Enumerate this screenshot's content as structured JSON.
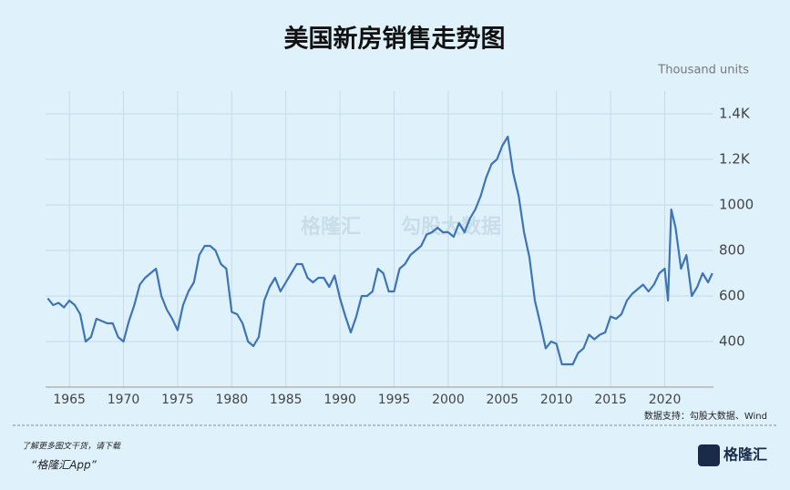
{
  "chart_data": {
    "type": "line",
    "title": "美国新房销售走势图",
    "y_axis_label": "Thousand units",
    "source": "数据支持：勾股大数据、Wind",
    "watermark": [
      "格隆汇",
      "勾股大数据"
    ],
    "footer": {
      "note": "了解更多图文干货，请下载",
      "app": "“格隆汇App”",
      "logo": "格隆汇"
    },
    "x": [
      1963,
      1963.5,
      1964,
      1964.5,
      1965,
      1965.5,
      1966,
      1966.5,
      1967,
      1967.5,
      1968,
      1968.5,
      1969,
      1969.5,
      1970,
      1970.5,
      1971,
      1971.5,
      1972,
      1972.5,
      1973,
      1973.5,
      1974,
      1974.5,
      1975,
      1975.5,
      1976,
      1976.5,
      1977,
      1977.5,
      1978,
      1978.5,
      1979,
      1979.5,
      1980,
      1980.5,
      1981,
      1981.5,
      1982,
      1982.5,
      1983,
      1983.5,
      1984,
      1984.5,
      1985,
      1985.5,
      1986,
      1986.5,
      1987,
      1987.5,
      1988,
      1988.5,
      1989,
      1989.5,
      1990,
      1990.5,
      1991,
      1991.5,
      1992,
      1992.5,
      1993,
      1993.5,
      1994,
      1994.5,
      1995,
      1995.5,
      1996,
      1996.5,
      1997,
      1997.5,
      1998,
      1998.5,
      1999,
      1999.5,
      2000,
      2000.5,
      2001,
      2001.5,
      2002,
      2002.5,
      2003,
      2003.5,
      2004,
      2004.5,
      2005,
      2005.5,
      2006,
      2006.5,
      2007,
      2007.5,
      2008,
      2008.5,
      2009,
      2009.5,
      2010,
      2010.5,
      2011,
      2011.5,
      2012,
      2012.5,
      2013,
      2013.5,
      2014,
      2014.5,
      2015,
      2015.5,
      2016,
      2016.5,
      2017,
      2017.5,
      2018,
      2018.5,
      2019,
      2019.5,
      2020,
      2020.3,
      2020.6,
      2021,
      2021.5,
      2022,
      2022.5,
      2023,
      2023.5,
      2024,
      2024.4
    ],
    "series": [
      {
        "name": "New home sales",
        "color": "#3d74b8",
        "values": [
          590,
          560,
          570,
          550,
          580,
          560,
          520,
          400,
          420,
          500,
          490,
          480,
          480,
          420,
          400,
          490,
          560,
          650,
          680,
          700,
          720,
          600,
          540,
          500,
          450,
          560,
          620,
          660,
          780,
          820,
          820,
          800,
          740,
          720,
          530,
          520,
          480,
          400,
          380,
          420,
          580,
          640,
          680,
          620,
          660,
          700,
          740,
          740,
          680,
          660,
          680,
          680,
          640,
          690,
          590,
          510,
          440,
          510,
          600,
          600,
          620,
          720,
          700,
          620,
          620,
          720,
          740,
          780,
          800,
          820,
          870,
          880,
          900,
          880,
          880,
          860,
          920,
          880,
          940,
          980,
          1040,
          1120,
          1180,
          1200,
          1260,
          1300,
          1140,
          1040,
          880,
          770,
          580,
          480,
          370,
          400,
          390,
          300,
          300,
          300,
          350,
          370,
          430,
          410,
          430,
          440,
          510,
          500,
          520,
          580,
          610,
          630,
          650,
          620,
          650,
          700,
          720,
          580,
          980,
          900,
          720,
          780,
          600,
          640,
          700,
          660,
          700
        ]
      }
    ],
    "xlim": [
      1962.8,
      2024.5
    ],
    "xticks": [
      1965,
      1970,
      1975,
      1980,
      1985,
      1990,
      1995,
      2000,
      2005,
      2010,
      2015,
      2020
    ],
    "ylim": [
      200,
      1500
    ],
    "yticks": [
      400,
      600,
      800,
      1000,
      {
        "value": 1200,
        "label": "1.2K"
      },
      {
        "value": 1400,
        "label": "1.4K"
      }
    ],
    "grid": true
  }
}
